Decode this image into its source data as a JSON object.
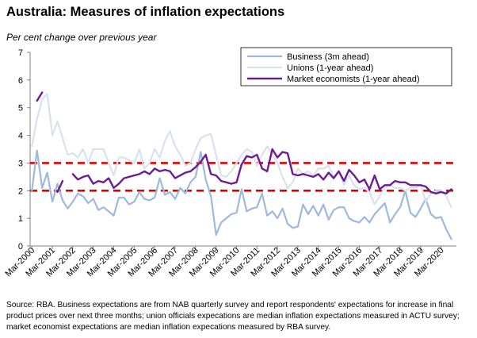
{
  "chart_data": {
    "type": "line",
    "title": "Australia: Measures of inflation expectations",
    "ylabel": "Per cent change over previous year",
    "xlabel": "",
    "ylim": [
      0,
      7
    ],
    "yticks": [
      0,
      1,
      2,
      3,
      4,
      5,
      6,
      7
    ],
    "xlim": [
      2000.083,
      2020.917
    ],
    "xticks": [
      {
        "label": "Mar-2000",
        "x": 2000.167
      },
      {
        "label": "Mar-2001",
        "x": 2001.167
      },
      {
        "label": "Mar-2002",
        "x": 2002.167
      },
      {
        "label": "Mar-2003",
        "x": 2003.167
      },
      {
        "label": "Mar-2004",
        "x": 2004.167
      },
      {
        "label": "Mar-2005",
        "x": 2005.167
      },
      {
        "label": "Mar-2006",
        "x": 2006.167
      },
      {
        "label": "Mar-2007",
        "x": 2007.167
      },
      {
        "label": "Mar-2008",
        "x": 2008.167
      },
      {
        "label": "Mar-2009",
        "x": 2009.167
      },
      {
        "label": "Mar-2010",
        "x": 2010.167
      },
      {
        "label": "Mar-2011",
        "x": 2011.167
      },
      {
        "label": "Mar-2012",
        "x": 2012.167
      },
      {
        "label": "Mar-2013",
        "x": 2013.167
      },
      {
        "label": "Mar-2014",
        "x": 2014.167
      },
      {
        "label": "Mar-2015",
        "x": 2015.167
      },
      {
        "label": "Mar-2016",
        "x": 2016.167
      },
      {
        "label": "Mar-2017",
        "x": 2017.167
      },
      {
        "label": "Mar-2018",
        "x": 2018.167
      },
      {
        "label": "Mar-2019",
        "x": 2019.167
      },
      {
        "label": "Mar-2020",
        "x": 2020.167
      }
    ],
    "reference_lines": [
      {
        "y": 3,
        "color": "#e00000",
        "style": "dashed"
      },
      {
        "y": 2,
        "color": "#e00000",
        "style": "dashed"
      }
    ],
    "grid": false,
    "legend_position": "top-right",
    "series": [
      {
        "name": "Business (3m ahead)",
        "color": "#9db9dd",
        "width": 2.2,
        "points": [
          [
            2000.17,
            2.0
          ],
          [
            2000.42,
            3.45
          ],
          [
            2000.67,
            2.1
          ],
          [
            2000.92,
            2.65
          ],
          [
            2001.17,
            1.6
          ],
          [
            2001.42,
            2.25
          ],
          [
            2001.67,
            1.65
          ],
          [
            2001.92,
            1.35
          ],
          [
            2002.17,
            1.6
          ],
          [
            2002.42,
            1.9
          ],
          [
            2002.67,
            1.8
          ],
          [
            2002.92,
            1.55
          ],
          [
            2003.17,
            1.7
          ],
          [
            2003.42,
            1.3
          ],
          [
            2003.67,
            1.4
          ],
          [
            2003.92,
            1.25
          ],
          [
            2004.17,
            1.1
          ],
          [
            2004.42,
            1.75
          ],
          [
            2004.67,
            1.75
          ],
          [
            2004.92,
            1.5
          ],
          [
            2005.17,
            1.6
          ],
          [
            2005.42,
            1.95
          ],
          [
            2005.67,
            1.7
          ],
          [
            2005.92,
            1.65
          ],
          [
            2006.17,
            1.75
          ],
          [
            2006.42,
            2.45
          ],
          [
            2006.67,
            1.85
          ],
          [
            2006.92,
            1.95
          ],
          [
            2007.17,
            1.7
          ],
          [
            2007.42,
            2.1
          ],
          [
            2007.67,
            1.9
          ],
          [
            2007.92,
            2.3
          ],
          [
            2008.17,
            2.5
          ],
          [
            2008.42,
            3.4
          ],
          [
            2008.67,
            2.4
          ],
          [
            2008.92,
            1.8
          ],
          [
            2009.17,
            0.4
          ],
          [
            2009.42,
            0.85
          ],
          [
            2009.67,
            1.0
          ],
          [
            2009.92,
            1.15
          ],
          [
            2010.17,
            1.2
          ],
          [
            2010.42,
            2.05
          ],
          [
            2010.67,
            1.25
          ],
          [
            2010.92,
            1.35
          ],
          [
            2011.17,
            1.4
          ],
          [
            2011.42,
            1.9
          ],
          [
            2011.67,
            1.1
          ],
          [
            2011.92,
            1.25
          ],
          [
            2012.17,
            1.0
          ],
          [
            2012.42,
            1.35
          ],
          [
            2012.67,
            0.8
          ],
          [
            2012.92,
            0.65
          ],
          [
            2013.17,
            0.7
          ],
          [
            2013.42,
            1.5
          ],
          [
            2013.67,
            1.15
          ],
          [
            2013.92,
            1.45
          ],
          [
            2014.17,
            1.1
          ],
          [
            2014.42,
            1.5
          ],
          [
            2014.67,
            0.95
          ],
          [
            2014.92,
            1.3
          ],
          [
            2015.17,
            1.4
          ],
          [
            2015.42,
            1.4
          ],
          [
            2015.67,
            1.0
          ],
          [
            2015.92,
            0.9
          ],
          [
            2016.17,
            0.85
          ],
          [
            2016.42,
            1.05
          ],
          [
            2016.67,
            0.85
          ],
          [
            2016.92,
            1.15
          ],
          [
            2017.17,
            1.35
          ],
          [
            2017.42,
            1.55
          ],
          [
            2017.67,
            0.85
          ],
          [
            2017.92,
            1.15
          ],
          [
            2018.17,
            1.4
          ],
          [
            2018.42,
            2.0
          ],
          [
            2018.67,
            1.2
          ],
          [
            2018.92,
            1.05
          ],
          [
            2019.17,
            1.35
          ],
          [
            2019.42,
            1.7
          ],
          [
            2019.67,
            1.15
          ],
          [
            2019.92,
            1.0
          ],
          [
            2020.17,
            1.05
          ],
          [
            2020.42,
            0.6
          ],
          [
            2020.67,
            0.25
          ]
        ]
      },
      {
        "name": "Unions (1-year ahead)",
        "color": "#d7e3f1",
        "width": 2.2,
        "points": [
          [
            2000.17,
            3.6
          ],
          [
            2000.42,
            4.6
          ],
          [
            2000.67,
            5.3
          ],
          [
            2000.92,
            5.5
          ],
          [
            2001.17,
            4.0
          ],
          [
            2001.42,
            4.5
          ],
          [
            2001.67,
            3.9
          ],
          [
            2001.92,
            3.3
          ],
          [
            2002.17,
            3.35
          ],
          [
            2002.42,
            3.2
          ],
          [
            2002.67,
            3.5
          ],
          [
            2002.92,
            3.0
          ],
          [
            2003.17,
            3.5
          ],
          [
            2003.42,
            3.5
          ],
          [
            2003.67,
            3.5
          ],
          [
            2003.92,
            3.0
          ],
          [
            2004.17,
            2.55
          ],
          [
            2004.42,
            3.2
          ],
          [
            2004.67,
            3.2
          ],
          [
            2004.92,
            3.1
          ],
          [
            2005.17,
            3.0
          ],
          [
            2005.42,
            3.5
          ],
          [
            2005.67,
            2.8
          ],
          [
            2005.92,
            3.0
          ],
          [
            2006.17,
            3.5
          ],
          [
            2006.42,
            3.2
          ],
          [
            2006.67,
            3.8
          ],
          [
            2006.92,
            4.15
          ],
          [
            2007.17,
            3.6
          ],
          [
            2007.42,
            3.3
          ],
          [
            2007.67,
            2.9
          ],
          [
            2007.92,
            3.0
          ],
          [
            2008.17,
            3.5
          ],
          [
            2008.42,
            3.9
          ],
          [
            2008.67,
            4.0
          ],
          [
            2008.92,
            4.05
          ],
          [
            2009.17,
            3.3
          ],
          [
            2009.42,
            2.55
          ],
          [
            2009.67,
            2.5
          ],
          [
            2009.92,
            2.7
          ],
          [
            2010.17,
            3.0
          ],
          [
            2010.42,
            3.3
          ],
          [
            2010.67,
            3.5
          ],
          [
            2010.92,
            3.4
          ],
          [
            2011.17,
            2.9
          ],
          [
            2011.42,
            3.3
          ],
          [
            2011.67,
            3.6
          ],
          [
            2011.92,
            3.3
          ],
          [
            2012.17,
            3.0
          ],
          [
            2012.42,
            2.5
          ],
          [
            2012.67,
            2.1
          ],
          [
            2012.92,
            2.3
          ],
          [
            2013.17,
            2.8
          ],
          [
            2013.42,
            2.6
          ],
          [
            2013.67,
            2.7
          ],
          [
            2013.92,
            2.55
          ],
          [
            2014.17,
            2.8
          ],
          [
            2014.42,
            2.8
          ],
          [
            2014.67,
            2.9
          ],
          [
            2014.92,
            2.5
          ],
          [
            2015.17,
            2.7
          ],
          [
            2015.42,
            2.2
          ],
          [
            2015.67,
            2.55
          ],
          [
            2015.92,
            2.2
          ],
          [
            2016.17,
            2.05
          ],
          [
            2016.42,
            2.1
          ],
          [
            2016.67,
            1.95
          ],
          [
            2016.92,
            1.5
          ],
          [
            2017.17,
            1.8
          ],
          [
            2017.42,
            2.1
          ],
          [
            2017.67,
            2.2
          ],
          [
            2017.92,
            2.1
          ],
          [
            2018.17,
            2.1
          ],
          [
            2018.42,
            2.0
          ],
          [
            2018.67,
            2.1
          ],
          [
            2018.92,
            2.1
          ],
          [
            2019.17,
            2.2
          ],
          [
            2019.42,
            1.6
          ],
          [
            2019.67,
            1.9
          ],
          [
            2019.92,
            2.0
          ],
          [
            2020.17,
            2.0
          ],
          [
            2020.42,
            1.8
          ],
          [
            2020.67,
            1.4
          ]
        ]
      },
      {
        "name": "Market economists (1-year ahead)",
        "color": "#6a1d93",
        "width": 2.4,
        "segments": [
          [
            [
              2000.42,
              5.25
            ],
            [
              2000.67,
              5.55
            ]
          ],
          [
            [
              2001.42,
              1.95
            ],
            [
              2001.67,
              2.35
            ]
          ],
          [
            [
              2002.17,
              2.6
            ],
            [
              2002.42,
              2.4
            ],
            [
              2002.67,
              2.5
            ],
            [
              2002.92,
              2.55
            ],
            [
              2003.17,
              2.25
            ],
            [
              2003.42,
              2.35
            ],
            [
              2003.67,
              2.3
            ],
            [
              2003.92,
              2.45
            ],
            [
              2004.17,
              2.1
            ],
            [
              2004.42,
              2.25
            ],
            [
              2004.67,
              2.45
            ],
            [
              2004.92,
              2.5
            ],
            [
              2005.17,
              2.55
            ],
            [
              2005.42,
              2.6
            ],
            [
              2005.67,
              2.7
            ],
            [
              2005.92,
              2.6
            ],
            [
              2006.17,
              2.8
            ],
            [
              2006.42,
              2.7
            ],
            [
              2006.67,
              2.75
            ],
            [
              2006.92,
              2.7
            ],
            [
              2007.17,
              2.45
            ],
            [
              2007.42,
              2.55
            ],
            [
              2007.67,
              2.65
            ],
            [
              2007.92,
              2.7
            ],
            [
              2008.17,
              2.85
            ],
            [
              2008.42,
              3.05
            ],
            [
              2008.67,
              3.3
            ],
            [
              2008.92,
              2.6
            ],
            [
              2009.17,
              2.55
            ],
            [
              2009.42,
              2.35
            ],
            [
              2009.67,
              2.3
            ],
            [
              2009.92,
              2.25
            ],
            [
              2010.17,
              2.3
            ],
            [
              2010.42,
              2.95
            ],
            [
              2010.67,
              3.25
            ],
            [
              2010.92,
              3.2
            ],
            [
              2011.17,
              3.3
            ],
            [
              2011.42,
              2.8
            ],
            [
              2011.67,
              2.7
            ],
            [
              2011.92,
              3.5
            ],
            [
              2012.17,
              3.2
            ],
            [
              2012.42,
              3.4
            ],
            [
              2012.67,
              3.35
            ],
            [
              2012.92,
              2.6
            ],
            [
              2013.17,
              2.55
            ],
            [
              2013.42,
              2.6
            ],
            [
              2013.67,
              2.55
            ],
            [
              2013.92,
              2.5
            ],
            [
              2014.17,
              2.6
            ],
            [
              2014.42,
              2.4
            ],
            [
              2014.67,
              2.65
            ],
            [
              2014.92,
              2.45
            ],
            [
              2015.17,
              2.7
            ],
            [
              2015.42,
              2.35
            ],
            [
              2015.67,
              2.75
            ],
            [
              2015.92,
              2.55
            ],
            [
              2016.17,
              2.3
            ],
            [
              2016.42,
              2.4
            ],
            [
              2016.67,
              2.05
            ],
            [
              2016.92,
              2.55
            ],
            [
              2017.17,
              2.05
            ],
            [
              2017.42,
              2.2
            ],
            [
              2017.67,
              2.2
            ],
            [
              2017.92,
              2.35
            ],
            [
              2018.17,
              2.3
            ],
            [
              2018.42,
              2.3
            ],
            [
              2018.67,
              2.2
            ],
            [
              2018.92,
              2.2
            ],
            [
              2019.17,
              2.2
            ],
            [
              2019.42,
              2.15
            ],
            [
              2019.67,
              1.95
            ],
            [
              2019.92,
              1.9
            ],
            [
              2020.17,
              1.95
            ],
            [
              2020.42,
              1.9
            ],
            [
              2020.67,
              2.05
            ]
          ]
        ]
      }
    ]
  },
  "source_note": "Source: RBA.  Business expectations are from NAB quarterly survey and report respondents' expectations for increase in final product prices over next three months; union officials expecations are median inflation expectations measured in ACTU survey; market economist expectations are median inflation expecations measured by RBA survey."
}
